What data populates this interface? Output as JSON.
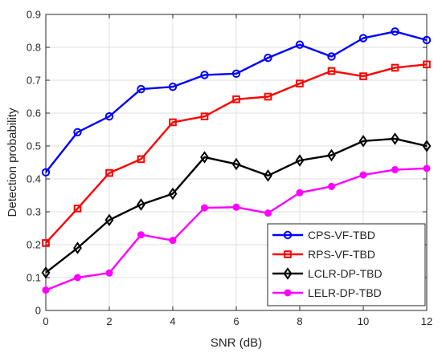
{
  "chart_data": {
    "type": "line",
    "xlabel": "SNR (dB)",
    "ylabel": "Detection probability",
    "xlim": [
      0,
      12
    ],
    "ylim": [
      0,
      0.9
    ],
    "x_ticks": [
      "0",
      "2",
      "4",
      "6",
      "8",
      "10",
      "12"
    ],
    "y_ticks": [
      "0",
      "0.1",
      "0.2",
      "0.3",
      "0.4",
      "0.5",
      "0.6",
      "0.7",
      "0.8",
      "0.9"
    ],
    "grid": true,
    "legend_position": "bottom-right",
    "x": [
      0,
      1,
      2,
      3,
      4,
      5,
      6,
      7,
      8,
      9,
      10,
      11,
      12
    ],
    "series": [
      {
        "name": "CPS-VF-TBD",
        "color": "#0000ff",
        "marker": "circle",
        "values": [
          0.42,
          0.542,
          0.59,
          0.673,
          0.68,
          0.716,
          0.72,
          0.768,
          0.808,
          0.772,
          0.828,
          0.848,
          0.822
        ]
      },
      {
        "name": "RPS-VF-TBD",
        "color": "#ff0000",
        "marker": "square",
        "values": [
          0.205,
          0.31,
          0.418,
          0.46,
          0.572,
          0.59,
          0.642,
          0.65,
          0.69,
          0.728,
          0.712,
          0.738,
          0.748
        ]
      },
      {
        "name": "LCLR-DP-TBD",
        "color": "#000000",
        "marker": "diamond",
        "values": [
          0.115,
          0.19,
          0.275,
          0.322,
          0.355,
          0.466,
          0.445,
          0.41,
          0.456,
          0.472,
          0.515,
          0.522,
          0.5
        ]
      },
      {
        "name": "LELR-DP-TBD",
        "color": "#ff00ff",
        "marker": "dot",
        "values": [
          0.062,
          0.1,
          0.114,
          0.23,
          0.213,
          0.312,
          0.314,
          0.296,
          0.358,
          0.377,
          0.412,
          0.428,
          0.432
        ]
      }
    ]
  }
}
